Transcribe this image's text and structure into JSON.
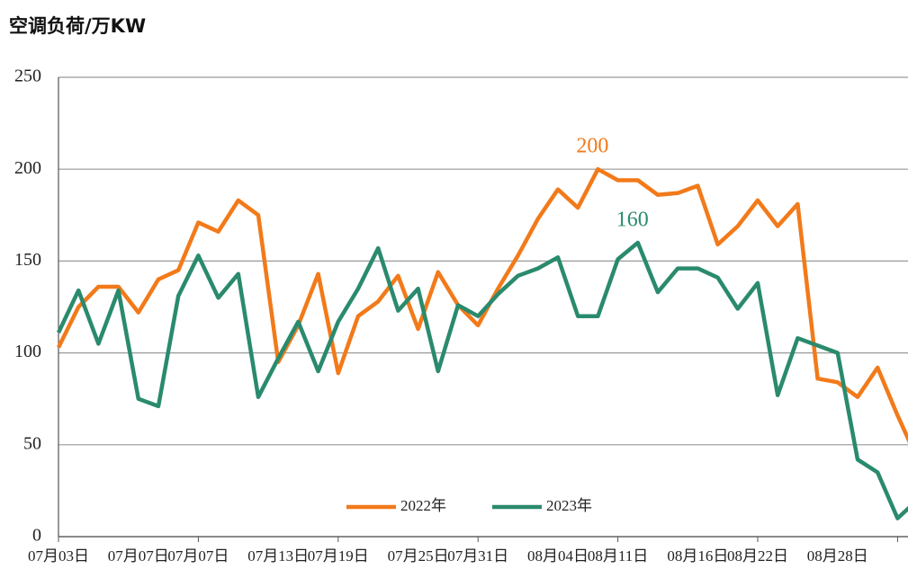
{
  "chart_data": {
    "type": "line",
    "title": "空调负荷/万KW",
    "categories": [
      "07月03日",
      null,
      null,
      null,
      "07月07日",
      null,
      null,
      "07月07日",
      null,
      null,
      null,
      "07月13日",
      null,
      null,
      "07月19日",
      null,
      null,
      null,
      "07月25日",
      null,
      null,
      "07月31日",
      null,
      null,
      null,
      "08月04日",
      null,
      null,
      "08月11日",
      null,
      null,
      null,
      "08月16日",
      null,
      null,
      "08月22日",
      null,
      null,
      null,
      "08月28日",
      null,
      null,
      null,
      null
    ],
    "series": [
      {
        "name": "2022年",
        "color": "#f27a1a",
        "values": [
          103,
          125,
          136,
          136,
          122,
          140,
          145,
          171,
          166,
          183,
          175,
          95,
          115,
          143,
          89,
          120,
          128,
          142,
          113,
          144,
          126,
          115,
          135,
          153,
          173,
          189,
          179,
          200,
          194,
          194,
          186,
          187,
          191,
          159,
          169,
          183,
          169,
          181,
          86,
          84,
          76,
          92,
          66,
          42
        ]
      },
      {
        "name": "2023年",
        "color": "#2a8a6e",
        "values": [
          111,
          134,
          105,
          134,
          75,
          71,
          131,
          153,
          130,
          143,
          76,
          97,
          117,
          90,
          117,
          135,
          157,
          123,
          135,
          90,
          126,
          120,
          132,
          142,
          146,
          152,
          120,
          120,
          151,
          160,
          133,
          146,
          146,
          141,
          124,
          138,
          77,
          108,
          104,
          100,
          42,
          35,
          10,
          20
        ]
      }
    ],
    "ylim": [
      0,
      250
    ],
    "yticks": [
      0,
      50,
      100,
      150,
      200,
      250
    ],
    "grid": true,
    "label_max": true,
    "legend": "bottom"
  }
}
